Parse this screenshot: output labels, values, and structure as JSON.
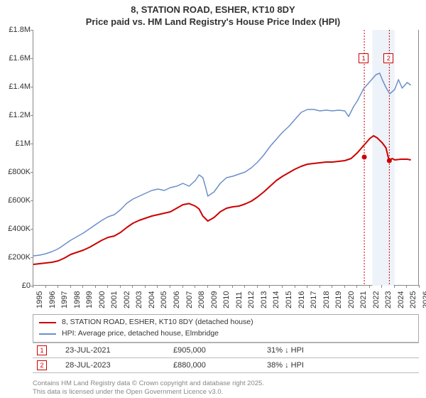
{
  "title_line1": "8, STATION ROAD, ESHER, KT10 8DY",
  "title_line2": "Price paid vs. HM Land Registry's House Price Index (HPI)",
  "chart": {
    "type": "line",
    "x_domain": [
      1995,
      2026
    ],
    "y_domain": [
      0,
      1800000
    ],
    "y_ticks": [
      0,
      200000,
      400000,
      600000,
      800000,
      1000000,
      1200000,
      1400000,
      1600000,
      1800000
    ],
    "y_tick_labels": [
      "£0",
      "£200K",
      "£400K",
      "£600K",
      "£800K",
      "£1M",
      "£1.2M",
      "£1.4M",
      "£1.6M",
      "£1.8M"
    ],
    "x_ticks": [
      1995,
      1996,
      1997,
      1998,
      1999,
      2000,
      2001,
      2002,
      2003,
      2004,
      2005,
      2006,
      2007,
      2008,
      2009,
      2010,
      2011,
      2012,
      2013,
      2014,
      2015,
      2016,
      2017,
      2018,
      2019,
      2020,
      2021,
      2022,
      2023,
      2024,
      2025,
      2026
    ],
    "background_color": "#ffffff",
    "axis_color": "#888888",
    "tick_fontsize": 11,
    "series": [
      {
        "name": "price_paid",
        "color": "#cc0000",
        "line_width": 2,
        "points": [
          [
            1995.0,
            150000
          ],
          [
            1995.5,
            155000
          ],
          [
            1996.0,
            160000
          ],
          [
            1996.5,
            165000
          ],
          [
            1997.0,
            175000
          ],
          [
            1997.5,
            195000
          ],
          [
            1998.0,
            220000
          ],
          [
            1998.5,
            235000
          ],
          [
            1999.0,
            250000
          ],
          [
            1999.5,
            270000
          ],
          [
            2000.0,
            295000
          ],
          [
            2000.5,
            320000
          ],
          [
            2001.0,
            340000
          ],
          [
            2001.5,
            350000
          ],
          [
            2002.0,
            375000
          ],
          [
            2002.5,
            410000
          ],
          [
            2003.0,
            440000
          ],
          [
            2003.5,
            460000
          ],
          [
            2004.0,
            475000
          ],
          [
            2004.5,
            490000
          ],
          [
            2005.0,
            500000
          ],
          [
            2005.5,
            510000
          ],
          [
            2006.0,
            520000
          ],
          [
            2006.5,
            545000
          ],
          [
            2007.0,
            570000
          ],
          [
            2007.5,
            578000
          ],
          [
            2008.0,
            560000
          ],
          [
            2008.3,
            540000
          ],
          [
            2008.6,
            490000
          ],
          [
            2009.0,
            455000
          ],
          [
            2009.5,
            480000
          ],
          [
            2010.0,
            520000
          ],
          [
            2010.5,
            545000
          ],
          [
            2011.0,
            555000
          ],
          [
            2011.5,
            560000
          ],
          [
            2012.0,
            575000
          ],
          [
            2012.5,
            595000
          ],
          [
            2013.0,
            625000
          ],
          [
            2013.5,
            660000
          ],
          [
            2014.0,
            700000
          ],
          [
            2014.5,
            740000
          ],
          [
            2015.0,
            770000
          ],
          [
            2015.5,
            795000
          ],
          [
            2016.0,
            820000
          ],
          [
            2016.5,
            840000
          ],
          [
            2017.0,
            855000
          ],
          [
            2017.5,
            860000
          ],
          [
            2018.0,
            865000
          ],
          [
            2018.5,
            870000
          ],
          [
            2019.0,
            870000
          ],
          [
            2019.5,
            875000
          ],
          [
            2020.0,
            880000
          ],
          [
            2020.5,
            895000
          ],
          [
            2021.0,
            935000
          ],
          [
            2021.5,
            985000
          ],
          [
            2022.0,
            1035000
          ],
          [
            2022.3,
            1055000
          ],
          [
            2022.6,
            1040000
          ],
          [
            2023.0,
            1005000
          ],
          [
            2023.3,
            970000
          ],
          [
            2023.55,
            880000
          ],
          [
            2023.8,
            895000
          ],
          [
            2024.0,
            885000
          ],
          [
            2024.5,
            890000
          ],
          [
            2025.0,
            890000
          ],
          [
            2025.3,
            885000
          ]
        ]
      },
      {
        "name": "hpi",
        "color": "#6b8fc9",
        "line_width": 1.5,
        "points": [
          [
            1995.0,
            210000
          ],
          [
            1995.5,
            215000
          ],
          [
            1996.0,
            225000
          ],
          [
            1996.5,
            240000
          ],
          [
            1997.0,
            260000
          ],
          [
            1997.5,
            290000
          ],
          [
            1998.0,
            320000
          ],
          [
            1998.5,
            345000
          ],
          [
            1999.0,
            370000
          ],
          [
            1999.5,
            400000
          ],
          [
            2000.0,
            430000
          ],
          [
            2000.5,
            460000
          ],
          [
            2001.0,
            485000
          ],
          [
            2001.5,
            500000
          ],
          [
            2002.0,
            535000
          ],
          [
            2002.5,
            580000
          ],
          [
            2003.0,
            610000
          ],
          [
            2003.5,
            630000
          ],
          [
            2004.0,
            650000
          ],
          [
            2004.5,
            670000
          ],
          [
            2005.0,
            680000
          ],
          [
            2005.5,
            670000
          ],
          [
            2006.0,
            690000
          ],
          [
            2006.5,
            700000
          ],
          [
            2007.0,
            720000
          ],
          [
            2007.5,
            700000
          ],
          [
            2008.0,
            740000
          ],
          [
            2008.3,
            780000
          ],
          [
            2008.6,
            760000
          ],
          [
            2008.8,
            700000
          ],
          [
            2009.0,
            630000
          ],
          [
            2009.5,
            660000
          ],
          [
            2010.0,
            720000
          ],
          [
            2010.5,
            760000
          ],
          [
            2011.0,
            770000
          ],
          [
            2011.5,
            785000
          ],
          [
            2012.0,
            800000
          ],
          [
            2012.5,
            830000
          ],
          [
            2013.0,
            870000
          ],
          [
            2013.5,
            920000
          ],
          [
            2014.0,
            980000
          ],
          [
            2014.5,
            1030000
          ],
          [
            2015.0,
            1080000
          ],
          [
            2015.5,
            1120000
          ],
          [
            2016.0,
            1170000
          ],
          [
            2016.5,
            1220000
          ],
          [
            2017.0,
            1240000
          ],
          [
            2017.5,
            1240000
          ],
          [
            2018.0,
            1230000
          ],
          [
            2018.5,
            1235000
          ],
          [
            2019.0,
            1230000
          ],
          [
            2019.5,
            1235000
          ],
          [
            2020.0,
            1230000
          ],
          [
            2020.3,
            1190000
          ],
          [
            2020.7,
            1260000
          ],
          [
            2021.0,
            1300000
          ],
          [
            2021.5,
            1385000
          ],
          [
            2022.0,
            1435000
          ],
          [
            2022.5,
            1485000
          ],
          [
            2022.8,
            1495000
          ],
          [
            2023.0,
            1450000
          ],
          [
            2023.3,
            1395000
          ],
          [
            2023.6,
            1350000
          ],
          [
            2024.0,
            1380000
          ],
          [
            2024.3,
            1450000
          ],
          [
            2024.6,
            1390000
          ],
          [
            2025.0,
            1430000
          ],
          [
            2025.3,
            1410000
          ]
        ]
      }
    ],
    "highlight_band": {
      "x_start": 2022.2,
      "x_end": 2024.0,
      "fill": "#eef2f9"
    },
    "sale_markers": [
      {
        "num": "1",
        "x": 2021.56,
        "y": 905000,
        "vline_color": "#cc0000",
        "dot_color": "#cc0000",
        "label_y_top": 1600000
      },
      {
        "num": "2",
        "x": 2023.57,
        "y": 880000,
        "vline_color": "#cc0000",
        "dot_color": "#cc0000",
        "label_y_top": 1600000
      }
    ]
  },
  "legend": {
    "border_color": "#aaaaaa",
    "items": [
      {
        "color": "#cc0000",
        "label": "8, STATION ROAD, ESHER, KT10 8DY (detached house)"
      },
      {
        "color": "#6b8fc9",
        "label": "HPI: Average price, detached house, Elmbridge"
      }
    ]
  },
  "sales": [
    {
      "num": "1",
      "color": "#cc0000",
      "date": "23-JUL-2021",
      "price": "£905,000",
      "pct": "31% ↓ HPI"
    },
    {
      "num": "2",
      "color": "#cc0000",
      "date": "28-JUL-2023",
      "price": "£880,000",
      "pct": "38% ↓ HPI"
    }
  ],
  "footnote_line1": "Contains HM Land Registry data © Crown copyright and database right 2025.",
  "footnote_line2": "This data is licensed under the Open Government Licence v3.0."
}
